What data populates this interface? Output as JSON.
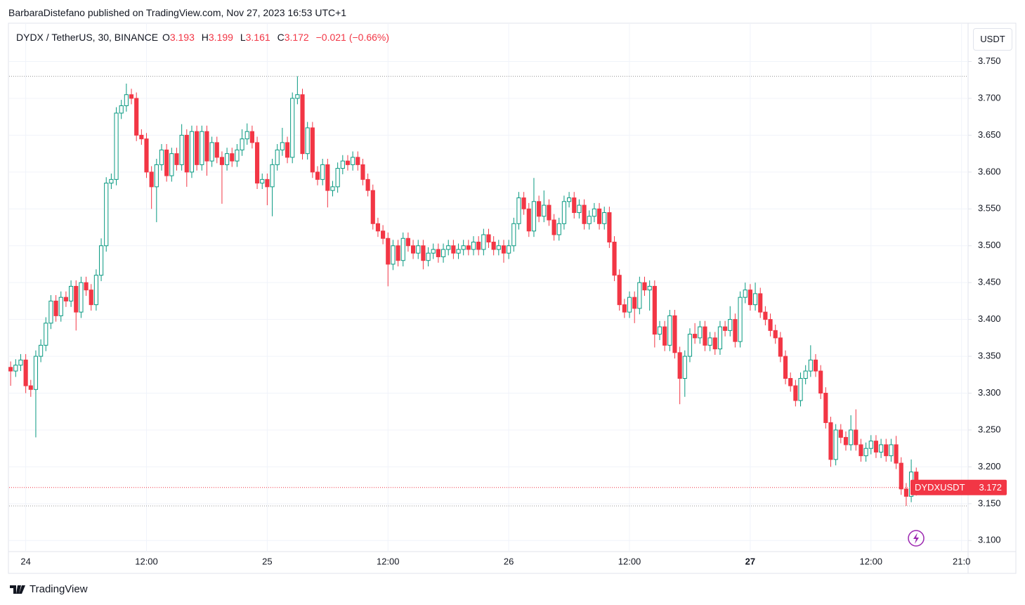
{
  "header": {
    "byline": "BarbaraDistefano published on TradingView.com, Nov 27, 2023 16:53 UTC+1"
  },
  "footer": {
    "brand": "TradingView"
  },
  "chart_data": {
    "type": "candlestick",
    "title": "DYDX / TetherUS, 30, BINANCE",
    "ohlc_labels": [
      "O",
      "H",
      "L",
      "C"
    ],
    "change": "−0.021",
    "change_percent": "(−0.66%)",
    "currency": "USDT",
    "symbol": "DYDXUSDT",
    "up_color": "#089981",
    "down_color": "#f23645",
    "grid": true,
    "xlim": [
      -0.3,
      190.3
    ],
    "xticks": [
      {
        "value": 3,
        "label": "24"
      },
      {
        "value": 27,
        "label": "12:00"
      },
      {
        "value": 51,
        "label": "25"
      },
      {
        "value": 75,
        "label": "12:00"
      },
      {
        "value": 99,
        "label": "26"
      },
      {
        "value": 123,
        "label": "12:00"
      },
      {
        "value": 147,
        "label": "27"
      },
      {
        "value": 171,
        "label": "12:00"
      },
      {
        "value": 189,
        "label": "21:0"
      }
    ],
    "ylim": [
      3.085,
      3.802
    ],
    "yticks": [
      {
        "value": 3.1,
        "label": "3.100"
      },
      {
        "value": 3.15,
        "label": "3.150"
      },
      {
        "value": 3.2,
        "label": "3.200"
      },
      {
        "value": 3.25,
        "label": "3.250"
      },
      {
        "value": 3.3,
        "label": "3.300"
      },
      {
        "value": 3.35,
        "label": "3.350"
      },
      {
        "value": 3.4,
        "label": "3.400"
      },
      {
        "value": 3.45,
        "label": "3.450"
      },
      {
        "value": 3.5,
        "label": "3.500"
      },
      {
        "value": 3.55,
        "label": "3.550"
      },
      {
        "value": 3.6,
        "label": "3.600"
      },
      {
        "value": 3.65,
        "label": "3.650"
      },
      {
        "value": 3.7,
        "label": "3.700"
      },
      {
        "value": 3.75,
        "label": "3.750"
      }
    ],
    "open": [
      3.335,
      3.33,
      3.338,
      3.345,
      3.31,
      3.305,
      3.35,
      3.365,
      3.395,
      3.425,
      3.405,
      3.43,
      3.425,
      3.445,
      3.41,
      3.45,
      3.44,
      3.42,
      3.46,
      3.5,
      3.585,
      3.59,
      3.68,
      3.69,
      3.705,
      3.7,
      3.65,
      3.645,
      3.6,
      3.58,
      3.61,
      3.63,
      3.595,
      3.625,
      3.61,
      3.65,
      3.6,
      3.655,
      3.61,
      3.655,
      3.615,
      3.64,
      3.62,
      3.61,
      3.625,
      3.615,
      3.63,
      3.645,
      3.655,
      3.64,
      3.585,
      3.59,
      3.58,
      3.61,
      3.63,
      3.64,
      3.62,
      3.7,
      3.705,
      3.625,
      3.66,
      3.6,
      3.59,
      3.61,
      3.575,
      3.58,
      3.605,
      3.615,
      3.61,
      3.62,
      3.61,
      3.59,
      3.575,
      3.53,
      3.52,
      3.51,
      3.475,
      3.5,
      3.48,
      3.51,
      3.5,
      3.49,
      3.5,
      3.48,
      3.49,
      3.495,
      3.485,
      3.495,
      3.5,
      3.49,
      3.495,
      3.5,
      3.495,
      3.505,
      3.495,
      3.515,
      3.505,
      3.495,
      3.5,
      3.49,
      3.5,
      3.53,
      3.565,
      3.55,
      3.52,
      3.56,
      3.54,
      3.555,
      3.535,
      3.515,
      3.53,
      3.56,
      3.565,
      3.545,
      3.555,
      3.53,
      3.54,
      3.55,
      3.53,
      3.545,
      3.505,
      3.46,
      3.42,
      3.41,
      3.43,
      3.415,
      3.45,
      3.44,
      3.445,
      3.38,
      3.39,
      3.365,
      3.405,
      3.355,
      3.32,
      3.35,
      3.38,
      3.375,
      3.39,
      3.365,
      3.375,
      3.36,
      3.39,
      3.385,
      3.4,
      3.37,
      3.43,
      3.44,
      3.42,
      3.435,
      3.41,
      3.4,
      3.385,
      3.375,
      3.35,
      3.32,
      3.31,
      3.29,
      3.32,
      3.33,
      3.345,
      3.33,
      3.3,
      3.26,
      3.21,
      3.25,
      3.24,
      3.23,
      3.25,
      3.23,
      3.215,
      3.225,
      3.235,
      3.22,
      3.23,
      3.215,
      3.23,
      3.205,
      3.17,
      3.16,
      3.193
    ],
    "high": [
      3.343,
      3.346,
      3.353,
      3.353,
      3.318,
      3.358,
      3.373,
      3.403,
      3.433,
      3.433,
      3.438,
      3.438,
      3.453,
      3.453,
      3.458,
      3.458,
      3.448,
      3.468,
      3.51,
      3.593,
      3.598,
      3.688,
      3.698,
      3.72,
      3.713,
      3.708,
      3.658,
      3.653,
      3.608,
      3.618,
      3.638,
      3.638,
      3.633,
      3.633,
      3.665,
      3.658,
      3.663,
      3.663,
      3.663,
      3.663,
      3.648,
      3.648,
      3.628,
      3.633,
      3.633,
      3.638,
      3.658,
      3.666,
      3.663,
      3.648,
      3.598,
      3.598,
      3.618,
      3.638,
      3.66,
      3.648,
      3.708,
      3.73,
      3.713,
      3.668,
      3.668,
      3.608,
      3.618,
      3.618,
      3.588,
      3.613,
      3.623,
      3.623,
      3.628,
      3.628,
      3.618,
      3.598,
      3.583,
      3.538,
      3.528,
      3.518,
      3.508,
      3.508,
      3.518,
      3.518,
      3.508,
      3.508,
      3.508,
      3.498,
      3.503,
      3.503,
      3.503,
      3.508,
      3.508,
      3.503,
      3.508,
      3.508,
      3.513,
      3.513,
      3.523,
      3.523,
      3.513,
      3.508,
      3.508,
      3.508,
      3.538,
      3.573,
      3.573,
      3.558,
      3.592,
      3.568,
      3.575,
      3.563,
      3.543,
      3.538,
      3.568,
      3.573,
      3.573,
      3.563,
      3.563,
      3.548,
      3.558,
      3.558,
      3.553,
      3.553,
      3.513,
      3.468,
      3.428,
      3.438,
      3.438,
      3.458,
      3.458,
      3.453,
      3.453,
      3.398,
      3.398,
      3.413,
      3.413,
      3.363,
      3.358,
      3.388,
      3.395,
      3.398,
      3.398,
      3.383,
      3.383,
      3.398,
      3.398,
      3.418,
      3.408,
      3.438,
      3.45,
      3.448,
      3.45,
      3.443,
      3.418,
      3.408,
      3.393,
      3.383,
      3.358,
      3.328,
      3.318,
      3.328,
      3.338,
      3.365,
      3.353,
      3.338,
      3.308,
      3.268,
      3.258,
      3.258,
      3.248,
      3.27,
      3.278,
      3.238,
      3.233,
      3.243,
      3.243,
      3.238,
      3.238,
      3.238,
      3.242,
      3.213,
      3.178,
      3.21,
      3.199
    ],
    "low": [
      3.31,
      3.322,
      3.33,
      3.3,
      3.295,
      3.24,
      3.342,
      3.357,
      3.387,
      3.397,
      3.397,
      3.417,
      3.417,
      3.385,
      3.402,
      3.432,
      3.412,
      3.412,
      3.452,
      3.492,
      3.577,
      3.582,
      3.672,
      3.682,
      3.692,
      3.642,
      3.637,
      3.592,
      3.55,
      3.532,
      3.602,
      3.587,
      3.587,
      3.602,
      3.602,
      3.58,
      3.592,
      3.602,
      3.602,
      3.595,
      3.607,
      3.612,
      3.557,
      3.602,
      3.607,
      3.607,
      3.622,
      3.637,
      3.632,
      3.577,
      3.577,
      3.555,
      3.54,
      3.602,
      3.622,
      3.612,
      3.612,
      3.692,
      3.617,
      3.617,
      3.592,
      3.582,
      3.582,
      3.552,
      3.567,
      3.572,
      3.597,
      3.602,
      3.602,
      3.602,
      3.582,
      3.567,
      3.522,
      3.512,
      3.502,
      3.445,
      3.467,
      3.472,
      3.472,
      3.492,
      3.482,
      3.482,
      3.468,
      3.472,
      3.482,
      3.477,
      3.477,
      3.487,
      3.482,
      3.482,
      3.487,
      3.487,
      3.487,
      3.487,
      3.487,
      3.497,
      3.487,
      3.487,
      3.477,
      3.482,
      3.492,
      3.522,
      3.542,
      3.512,
      3.512,
      3.532,
      3.532,
      3.527,
      3.507,
      3.507,
      3.522,
      3.552,
      3.537,
      3.537,
      3.522,
      3.522,
      3.532,
      3.522,
      3.522,
      3.497,
      3.452,
      3.412,
      3.402,
      3.402,
      3.395,
      3.407,
      3.432,
      3.412,
      3.362,
      3.372,
      3.357,
      3.357,
      3.347,
      3.285,
      3.295,
      3.342,
      3.367,
      3.367,
      3.357,
      3.357,
      3.352,
      3.352,
      3.377,
      3.377,
      3.362,
      3.362,
      3.422,
      3.412,
      3.412,
      3.402,
      3.392,
      3.377,
      3.367,
      3.342,
      3.312,
      3.302,
      3.282,
      3.282,
      3.312,
      3.322,
      3.322,
      3.292,
      3.252,
      3.2,
      3.202,
      3.232,
      3.222,
      3.222,
      3.222,
      3.207,
      3.207,
      3.217,
      3.212,
      3.212,
      3.207,
      3.207,
      3.197,
      3.162,
      3.147,
      3.152,
      3.161
    ],
    "close": [
      3.33,
      3.338,
      3.345,
      3.31,
      3.305,
      3.35,
      3.365,
      3.395,
      3.425,
      3.405,
      3.43,
      3.425,
      3.445,
      3.41,
      3.45,
      3.44,
      3.42,
      3.46,
      3.5,
      3.585,
      3.59,
      3.68,
      3.69,
      3.705,
      3.7,
      3.65,
      3.645,
      3.6,
      3.58,
      3.61,
      3.63,
      3.595,
      3.625,
      3.61,
      3.65,
      3.6,
      3.655,
      3.61,
      3.655,
      3.615,
      3.64,
      3.62,
      3.61,
      3.625,
      3.615,
      3.63,
      3.645,
      3.655,
      3.64,
      3.585,
      3.59,
      3.58,
      3.61,
      3.63,
      3.64,
      3.62,
      3.7,
      3.705,
      3.625,
      3.66,
      3.6,
      3.59,
      3.61,
      3.575,
      3.58,
      3.605,
      3.615,
      3.61,
      3.62,
      3.61,
      3.59,
      3.575,
      3.53,
      3.52,
      3.51,
      3.475,
      3.5,
      3.48,
      3.51,
      3.5,
      3.49,
      3.5,
      3.48,
      3.49,
      3.495,
      3.485,
      3.495,
      3.5,
      3.49,
      3.495,
      3.5,
      3.495,
      3.505,
      3.495,
      3.515,
      3.505,
      3.495,
      3.5,
      3.49,
      3.5,
      3.53,
      3.565,
      3.55,
      3.52,
      3.56,
      3.54,
      3.555,
      3.535,
      3.515,
      3.53,
      3.56,
      3.565,
      3.545,
      3.555,
      3.53,
      3.54,
      3.55,
      3.53,
      3.545,
      3.505,
      3.46,
      3.42,
      3.41,
      3.43,
      3.415,
      3.45,
      3.44,
      3.445,
      3.38,
      3.39,
      3.365,
      3.405,
      3.355,
      3.32,
      3.35,
      3.38,
      3.375,
      3.39,
      3.365,
      3.375,
      3.36,
      3.39,
      3.385,
      3.4,
      3.37,
      3.43,
      3.44,
      3.42,
      3.435,
      3.41,
      3.4,
      3.385,
      3.375,
      3.35,
      3.32,
      3.31,
      3.29,
      3.32,
      3.33,
      3.345,
      3.33,
      3.3,
      3.26,
      3.21,
      3.25,
      3.24,
      3.23,
      3.25,
      3.23,
      3.215,
      3.225,
      3.235,
      3.22,
      3.23,
      3.215,
      3.23,
      3.205,
      3.17,
      3.16,
      3.193,
      3.172
    ]
  }
}
